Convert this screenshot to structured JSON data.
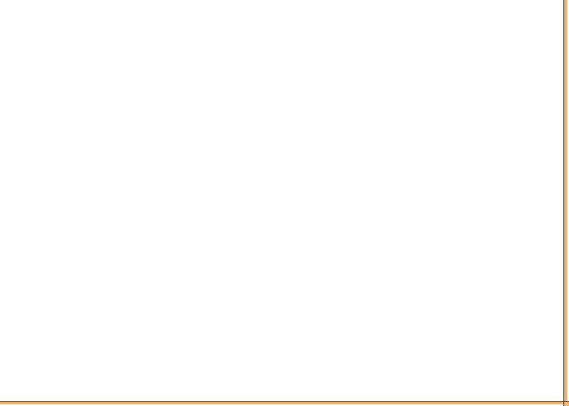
{
  "window": {
    "frame_color": "#e8b878",
    "frame_edge_color": "#5a3a1a",
    "content_background": "#ffffff"
  }
}
